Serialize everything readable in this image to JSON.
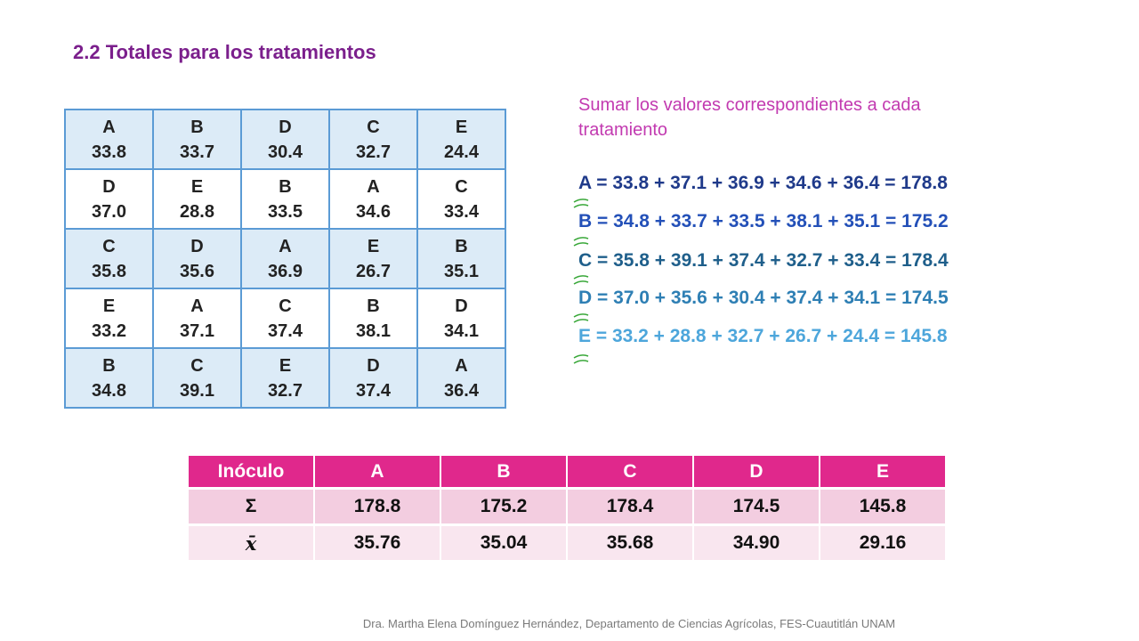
{
  "title": "2.2 Totales para los tratamientos",
  "grid": [
    [
      {
        "letter": "A",
        "value": "33.8"
      },
      {
        "letter": "B",
        "value": "33.7"
      },
      {
        "letter": "D",
        "value": "30.4"
      },
      {
        "letter": "C",
        "value": "32.7"
      },
      {
        "letter": "E",
        "value": "24.4"
      }
    ],
    [
      {
        "letter": "D",
        "value": "37.0"
      },
      {
        "letter": "E",
        "value": "28.8"
      },
      {
        "letter": "B",
        "value": "33.5"
      },
      {
        "letter": "A",
        "value": "34.6"
      },
      {
        "letter": "C",
        "value": "33.4"
      }
    ],
    [
      {
        "letter": "C",
        "value": "35.8"
      },
      {
        "letter": "D",
        "value": "35.6"
      },
      {
        "letter": "A",
        "value": "36.9"
      },
      {
        "letter": "E",
        "value": "26.7"
      },
      {
        "letter": "B",
        "value": "35.1"
      }
    ],
    [
      {
        "letter": "E",
        "value": "33.2"
      },
      {
        "letter": "A",
        "value": "37.1"
      },
      {
        "letter": "C",
        "value": "37.4"
      },
      {
        "letter": "B",
        "value": "38.1"
      },
      {
        "letter": "D",
        "value": "34.1"
      }
    ],
    [
      {
        "letter": "B",
        "value": "34.8"
      },
      {
        "letter": "C",
        "value": "39.1"
      },
      {
        "letter": "E",
        "value": "32.7"
      },
      {
        "letter": "D",
        "value": "37.4"
      },
      {
        "letter": "A",
        "value": "36.4"
      }
    ]
  ],
  "instruction": "Sumar los valores correspondientes a cada tratamiento",
  "sums": [
    {
      "text": "A = 33.8 + 37.1 + 36.9 + 34.6 + 36.4 = 178.8",
      "color": "#1f3a8a"
    },
    {
      "text": "B = 34.8 + 33.7 + 33.5 + 38.1 + 35.1 = 175.2",
      "color": "#2350b8"
    },
    {
      "text": "C = 35.8 + 39.1 + 37.4 + 32.7 + 33.4 = 178.4",
      "color": "#1f5f8b"
    },
    {
      "text": "D = 37.0 + 35.6 + 30.4 + 37.4 + 34.1 = 174.5",
      "color": "#2e7fb4"
    },
    {
      "text": "E = 33.2 + 28.8 + 32.7 + 26.7 + 24.4 = 145.8",
      "color": "#4da6db"
    }
  ],
  "summary": {
    "header": [
      "Inóculo",
      "A",
      "B",
      "C",
      "D",
      "E"
    ],
    "sum_row": [
      "Σ",
      "178.8",
      "175.2",
      "178.4",
      "174.5",
      "145.8"
    ],
    "mean_row": [
      "x̄",
      "35.76",
      "35.04",
      "35.68",
      "34.90",
      "29.16"
    ]
  },
  "colors": {
    "title": "#7b1f8c",
    "instruction": "#c23ab0",
    "grid_border": "#5b9bd5",
    "grid_shade": "#dcebf7",
    "table_header": "#e0288c",
    "table_row1": "#f3cde0",
    "table_row2": "#f9e6ef",
    "handwriting_mark": "#3aa83a"
  },
  "footer": "Dra. Martha Elena Domínguez Hernández, Departamento de Ciencias Agrícolas, FES-Cuautitlán UNAM"
}
